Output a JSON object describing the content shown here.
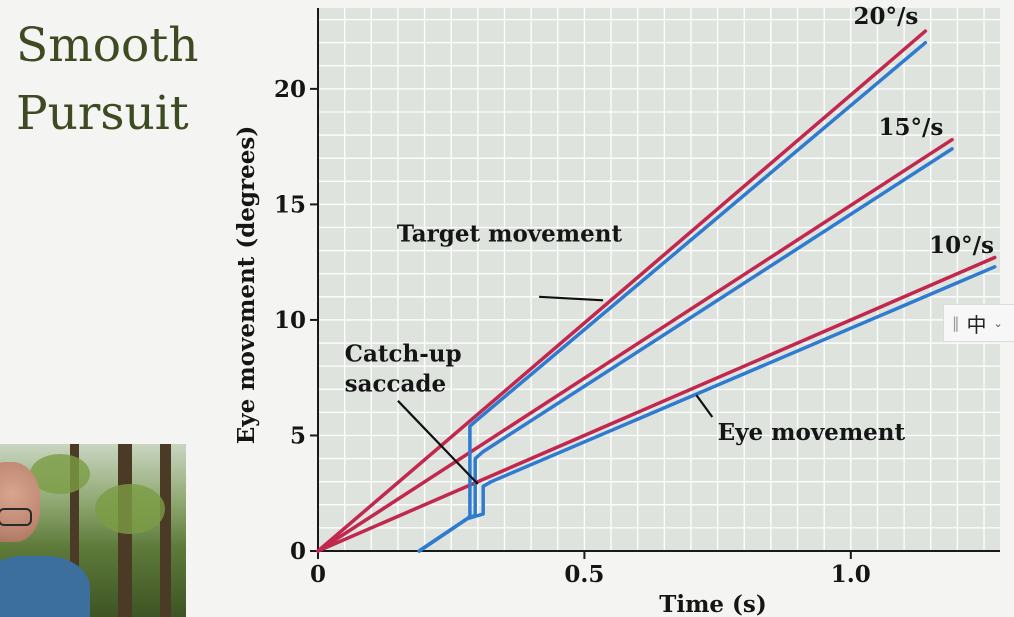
{
  "slide": {
    "title_lines": [
      "Smooth",
      "Pursuit"
    ]
  },
  "colors": {
    "target": "#c2284e",
    "eye": "#2f7bd0",
    "grid_bg": "#dee3de",
    "grid_line": "#ffffff",
    "title": "#3d4a22"
  },
  "ime": {
    "grip_icon": "‖",
    "label": "中",
    "chevron_icon": "⌄"
  },
  "chart_data": {
    "type": "line",
    "title": "",
    "xlabel": "Time (s)",
    "ylabel": "Eye movement (degrees)",
    "xlim": [
      0,
      1.28
    ],
    "ylim": [
      0,
      23.5
    ],
    "xticks": [
      {
        "v": 0,
        "label": "0"
      },
      {
        "v": 0.5,
        "label": "0.5"
      },
      {
        "v": 1.0,
        "label": "1.0"
      }
    ],
    "yticks": [
      {
        "v": 0,
        "label": "0"
      },
      {
        "v": 5,
        "label": "5"
      },
      {
        "v": 10,
        "label": "10"
      },
      {
        "v": 15,
        "label": "15"
      },
      {
        "v": 20,
        "label": "20"
      }
    ],
    "grid": true,
    "series": [
      {
        "name": "20°/s",
        "kind": "target",
        "points": [
          [
            0,
            0
          ],
          [
            1.14,
            22.5
          ]
        ]
      },
      {
        "name": "15°/s",
        "kind": "target",
        "points": [
          [
            0,
            0
          ],
          [
            1.19,
            17.8
          ]
        ]
      },
      {
        "name": "10°/s",
        "kind": "target",
        "points": [
          [
            0,
            0
          ],
          [
            1.27,
            12.7
          ]
        ]
      },
      {
        "name": "20°/s",
        "kind": "eye",
        "points": [
          [
            0.19,
            0
          ],
          [
            0.28,
            1.4
          ],
          [
            0.285,
            1.5
          ],
          [
            0.285,
            5.4
          ],
          [
            0.3,
            5.7
          ],
          [
            1.14,
            22.0
          ]
        ]
      },
      {
        "name": "15°/s",
        "kind": "eye",
        "points": [
          [
            0.19,
            0
          ],
          [
            0.28,
            1.4
          ],
          [
            0.295,
            1.55
          ],
          [
            0.295,
            4.0
          ],
          [
            0.31,
            4.3
          ],
          [
            1.19,
            17.4
          ]
        ]
      },
      {
        "name": "10°/s",
        "kind": "eye",
        "points": [
          [
            0.19,
            0
          ],
          [
            0.28,
            1.4
          ],
          [
            0.31,
            1.6
          ],
          [
            0.31,
            2.8
          ],
          [
            0.325,
            3.0
          ],
          [
            1.27,
            12.3
          ]
        ]
      }
    ],
    "rate_labels": [
      {
        "text": "20°/s",
        "x": 1.005,
        "y": 22.8
      },
      {
        "text": "15°/s",
        "x": 1.052,
        "y": 18.0
      },
      {
        "text": "10°/s",
        "x": 1.147,
        "y": 12.9
      }
    ],
    "annotations": [
      {
        "id": "target-movement",
        "lines": [
          "Target movement"
        ],
        "text_at": [
          0.148,
          13.4
        ],
        "pointer_from": [
          0.415,
          11.0
        ],
        "pointer_to": [
          0.535,
          10.85
        ]
      },
      {
        "id": "catch-up-saccade",
        "lines": [
          "Catch-up",
          "saccade"
        ],
        "text_at": [
          0.05,
          8.2
        ],
        "pointer_from": [
          0.15,
          6.5
        ],
        "pointer_to": [
          0.3,
          2.9
        ]
      },
      {
        "id": "eye-movement",
        "lines": [
          "Eye movement"
        ],
        "text_at": [
          0.75,
          4.8
        ],
        "pointer_from": [
          0.74,
          5.8
        ],
        "pointer_to": [
          0.71,
          6.75
        ]
      }
    ]
  }
}
